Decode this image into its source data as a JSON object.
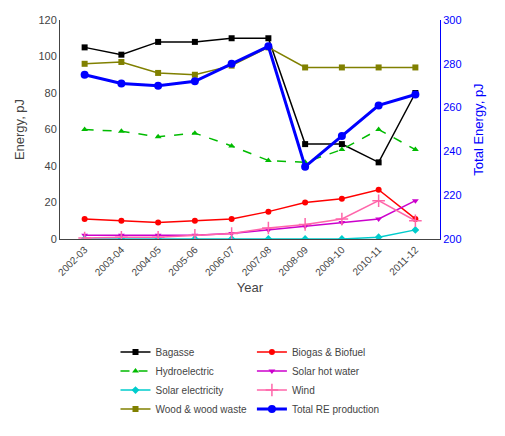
{
  "chart_data": {
    "type": "line",
    "categories": [
      "2002-03",
      "2003-04",
      "2004-05",
      "2005-06",
      "2006-07",
      "2007-08",
      "2008-09",
      "2009-10",
      "2010-11",
      "2011-12"
    ],
    "series": [
      {
        "name": "Bagasse",
        "color": "#000000",
        "marker": "square",
        "line_style": "solid",
        "values": [
          105,
          101,
          108,
          108,
          110,
          110,
          52,
          52,
          42,
          80
        ]
      },
      {
        "name": "Biogas & Biofuel",
        "color": "#ff0000",
        "marker": "circle",
        "line_style": "solid",
        "values": [
          11,
          10,
          9,
          10,
          11,
          15,
          20,
          22,
          27,
          11
        ]
      },
      {
        "name": "Hydroelectric",
        "color": "#00bb00",
        "marker": "triangle-up",
        "line_style": "dashed",
        "values": [
          60,
          59,
          56,
          58,
          51,
          43,
          42,
          49,
          60,
          49
        ]
      },
      {
        "name": "Solar hot water",
        "color": "#cc00cc",
        "marker": "triangle-down",
        "line_style": "solid",
        "values": [
          2,
          2,
          2,
          2,
          3,
          5,
          7,
          9,
          11,
          21
        ]
      },
      {
        "name": "Solar electricity",
        "color": "#00cccc",
        "marker": "diamond",
        "line_style": "solid",
        "values": [
          0,
          0,
          0,
          0,
          0,
          0,
          0,
          0,
          1,
          5
        ]
      },
      {
        "name": "Wind",
        "color": "#ff66aa",
        "marker": "plus",
        "line_style": "solid",
        "values": [
          0.5,
          1,
          1,
          2,
          3,
          6,
          8,
          11,
          21,
          10
        ]
      },
      {
        "name": "Wood & wood waste",
        "color": "#808000",
        "marker": "square",
        "line_style": "solid",
        "values": [
          96,
          97,
          91,
          90,
          95,
          105,
          94,
          94,
          94,
          94
        ]
      },
      {
        "name": "Total RE production",
        "color": "#0000ff",
        "marker": "circle",
        "line_style": "solid",
        "axis": "y2",
        "values": [
          275,
          271,
          270,
          272,
          280,
          288,
          233,
          247,
          261,
          266
        ]
      }
    ],
    "x_label": "Year",
    "y_label": "Energy, pJ",
    "y2_label": "Total Energy, pJ",
    "ylim": [
      0,
      120
    ],
    "yticks": [
      0,
      20,
      40,
      60,
      80,
      100,
      120
    ],
    "y2lim": [
      200,
      300
    ],
    "y2ticks": [
      200,
      220,
      240,
      260,
      280,
      300
    ],
    "grid": false,
    "legend": "bottom"
  }
}
